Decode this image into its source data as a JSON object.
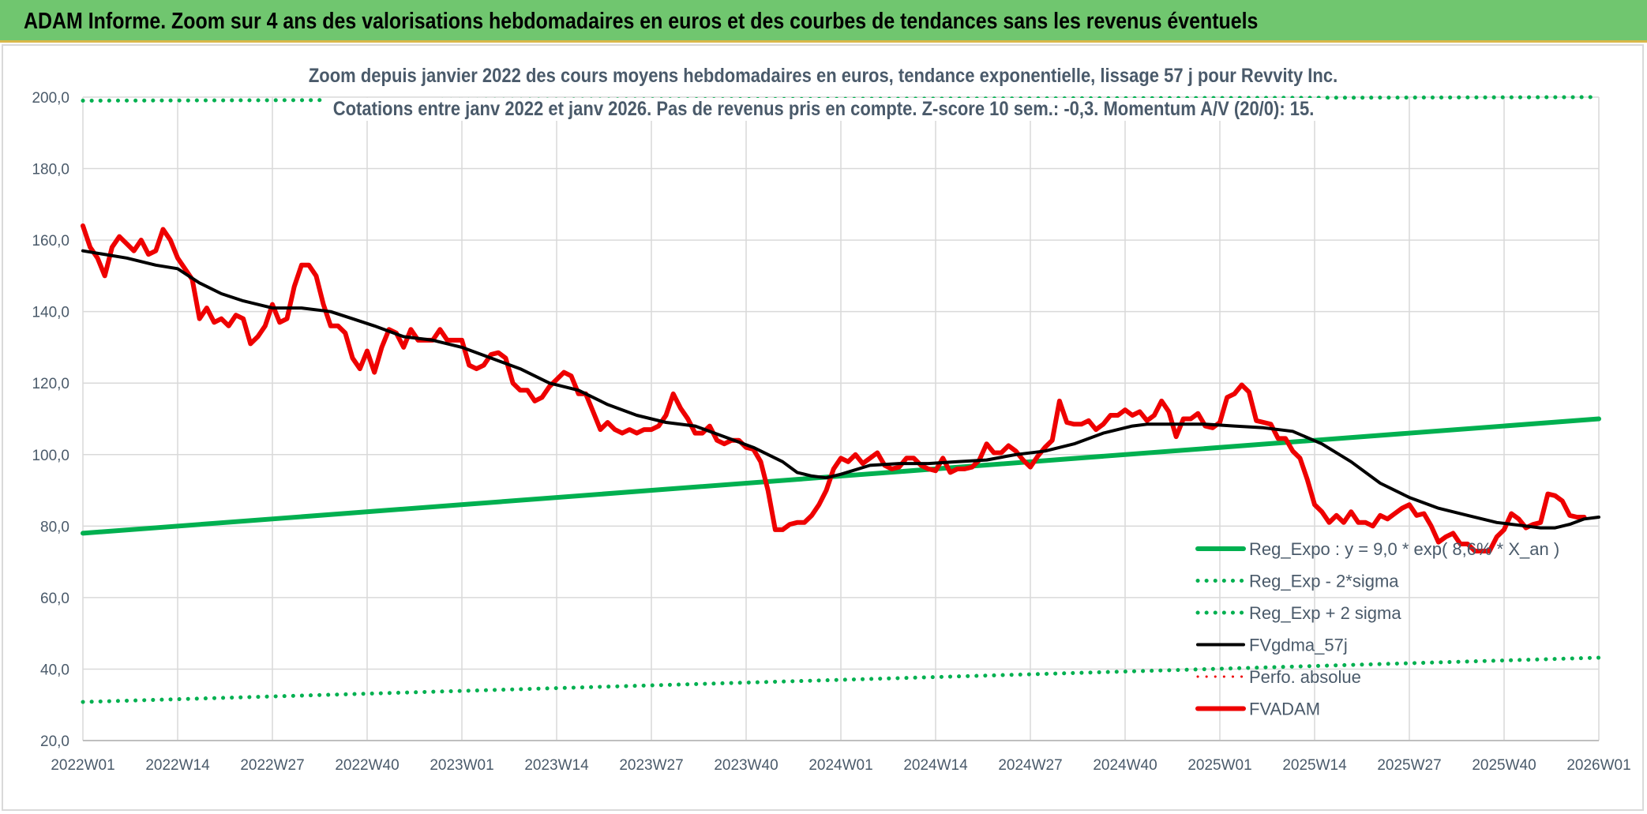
{
  "header": {
    "title": "ADAM Informe. Zoom sur 4 ans des valorisations hebdomadaires en euros et des courbes de tendances sans les revenus éventuels"
  },
  "colors": {
    "header_bg": "#70c66f",
    "green_series": "#00b050",
    "black_series": "#000000",
    "red_series": "#ee0000",
    "text": "#4a5a6a",
    "grid": "#d9d9d9"
  },
  "chart_data": {
    "type": "line",
    "title_lines": [
      "Zoom depuis janvier 2022 des cours moyens hebdomadaires en euros, tendance exponentielle, lissage 57 j pour Revvity Inc.",
      "Cotations entre janv 2022 et janv 2026. Pas de revenus pris en compte. Z-score 10 sem.: -0,3. Momentum A/V (20/0): 15."
    ],
    "x_tick_labels": [
      "2022W01",
      "2022W14",
      "2022W27",
      "2022W40",
      "2023W01",
      "2023W14",
      "2023W27",
      "2023W40",
      "2024W01",
      "2024W14",
      "2024W27",
      "2024W40",
      "2025W01",
      "2025W14",
      "2025W27",
      "2025W40",
      "2026W01"
    ],
    "y_tick_labels": [
      "20,0",
      "40,0",
      "60,0",
      "80,0",
      "100,0",
      "120,0",
      "140,0",
      "160,0",
      "180,0",
      "200,0"
    ],
    "ylim": [
      20,
      200
    ],
    "x_range_weeks": [
      0,
      208
    ],
    "grid": true,
    "legend_position": "bottom-right",
    "series": [
      {
        "name": "Reg_Expo : y = 9,0 * exp( 8,6% * X_an )",
        "style": "solid",
        "color": "#00b050",
        "width": 6,
        "points": [
          [
            0,
            78.0
          ],
          [
            208,
            110.0
          ]
        ]
      },
      {
        "name": "Reg_Exp - 2*sigma",
        "style": "dotted",
        "color": "#00b050",
        "width": 5,
        "points": [
          [
            0,
            30.8
          ],
          [
            208,
            43.2
          ]
        ]
      },
      {
        "name": "Reg_Exp + 2 sigma",
        "style": "dotted",
        "color": "#00b050",
        "width": 5,
        "points": [
          [
            0,
            199.0
          ],
          [
            208,
            200.0
          ]
        ]
      },
      {
        "name": "FVgdma_57j",
        "style": "solid",
        "color": "#000000",
        "width": 4,
        "points": [
          [
            0,
            157
          ],
          [
            6,
            155
          ],
          [
            10,
            153
          ],
          [
            13,
            152
          ],
          [
            16,
            148
          ],
          [
            19,
            145
          ],
          [
            22,
            143
          ],
          [
            26,
            141
          ],
          [
            30,
            141
          ],
          [
            34,
            140
          ],
          [
            37,
            138
          ],
          [
            40,
            136
          ],
          [
            44,
            133
          ],
          [
            48,
            132
          ],
          [
            52,
            130
          ],
          [
            56,
            127
          ],
          [
            60,
            124
          ],
          [
            64,
            120
          ],
          [
            68,
            118
          ],
          [
            72,
            114
          ],
          [
            76,
            111
          ],
          [
            80,
            109
          ],
          [
            84,
            108
          ],
          [
            88,
            105
          ],
          [
            92,
            102
          ],
          [
            96,
            98
          ],
          [
            98,
            95
          ],
          [
            100,
            94
          ],
          [
            102,
            93.5
          ],
          [
            104,
            94.5
          ],
          [
            108,
            97
          ],
          [
            112,
            97.5
          ],
          [
            116,
            97.5
          ],
          [
            120,
            98
          ],
          [
            124,
            98.5
          ],
          [
            128,
            100
          ],
          [
            132,
            101
          ],
          [
            136,
            103
          ],
          [
            140,
            106
          ],
          [
            144,
            108
          ],
          [
            146,
            108.5
          ],
          [
            150,
            108.5
          ],
          [
            154,
            108.5
          ],
          [
            158,
            108
          ],
          [
            162,
            107.5
          ],
          [
            166,
            106.5
          ],
          [
            170,
            103
          ],
          [
            174,
            98
          ],
          [
            178,
            92
          ],
          [
            182,
            88
          ],
          [
            186,
            85
          ],
          [
            190,
            83
          ],
          [
            194,
            81
          ],
          [
            198,
            80
          ],
          [
            200,
            79.5
          ],
          [
            202,
            79.5
          ],
          [
            204,
            80.5
          ],
          [
            206,
            82
          ],
          [
            208,
            82.5
          ]
        ]
      },
      {
        "name": "Perfo. absolue",
        "style": "dotted",
        "color": "#ee0000",
        "width": 3,
        "points": []
      },
      {
        "name": "FVADAM",
        "style": "solid",
        "color": "#ee0000",
        "width": 6,
        "points": [
          [
            0,
            164
          ],
          [
            1,
            158
          ],
          [
            2,
            155
          ],
          [
            3,
            150
          ],
          [
            4,
            158
          ],
          [
            5,
            161
          ],
          [
            6,
            159
          ],
          [
            7,
            157
          ],
          [
            8,
            160
          ],
          [
            9,
            156
          ],
          [
            10,
            157
          ],
          [
            11,
            163
          ],
          [
            12,
            160
          ],
          [
            13,
            155
          ],
          [
            14,
            152
          ],
          [
            15,
            149
          ],
          [
            16,
            138
          ],
          [
            17,
            141
          ],
          [
            18,
            137
          ],
          [
            19,
            138
          ],
          [
            20,
            136
          ],
          [
            21,
            139
          ],
          [
            22,
            138
          ],
          [
            23,
            131
          ],
          [
            24,
            133
          ],
          [
            25,
            136
          ],
          [
            26,
            142
          ],
          [
            27,
            137
          ],
          [
            28,
            138
          ],
          [
            29,
            147
          ],
          [
            30,
            153
          ],
          [
            31,
            153
          ],
          [
            32,
            150
          ],
          [
            33,
            142
          ],
          [
            34,
            136
          ],
          [
            35,
            136
          ],
          [
            36,
            134
          ],
          [
            37,
            127
          ],
          [
            38,
            124
          ],
          [
            39,
            129
          ],
          [
            40,
            123
          ],
          [
            41,
            130
          ],
          [
            42,
            135
          ],
          [
            43,
            134
          ],
          [
            44,
            130
          ],
          [
            45,
            135
          ],
          [
            46,
            132
          ],
          [
            47,
            132
          ],
          [
            48,
            132
          ],
          [
            49,
            135
          ],
          [
            50,
            132
          ],
          [
            51,
            132
          ],
          [
            52,
            132
          ],
          [
            53,
            125
          ],
          [
            54,
            124
          ],
          [
            55,
            125
          ],
          [
            56,
            128
          ],
          [
            57,
            128.5
          ],
          [
            58,
            127
          ],
          [
            59,
            120
          ],
          [
            60,
            118
          ],
          [
            61,
            118
          ],
          [
            62,
            115
          ],
          [
            63,
            116
          ],
          [
            64,
            119
          ],
          [
            65,
            121
          ],
          [
            66,
            123
          ],
          [
            67,
            122
          ],
          [
            68,
            117
          ],
          [
            69,
            117
          ],
          [
            70,
            112
          ],
          [
            71,
            107
          ],
          [
            72,
            109
          ],
          [
            73,
            107
          ],
          [
            74,
            106
          ],
          [
            75,
            107
          ],
          [
            76,
            106
          ],
          [
            77,
            107
          ],
          [
            78,
            107
          ],
          [
            79,
            108
          ],
          [
            80,
            111
          ],
          [
            81,
            117
          ],
          [
            82,
            113
          ],
          [
            83,
            110
          ],
          [
            84,
            106
          ],
          [
            85,
            106
          ],
          [
            86,
            108
          ],
          [
            87,
            104
          ],
          [
            88,
            103
          ],
          [
            89,
            104
          ],
          [
            90,
            104
          ],
          [
            91,
            102
          ],
          [
            92,
            101.5
          ],
          [
            93,
            98
          ],
          [
            94,
            90
          ],
          [
            95,
            79
          ],
          [
            96,
            79
          ],
          [
            97,
            80.5
          ],
          [
            98,
            81
          ],
          [
            99,
            81
          ],
          [
            100,
            83
          ],
          [
            101,
            86
          ],
          [
            102,
            90
          ],
          [
            103,
            96
          ],
          [
            104,
            99
          ],
          [
            105,
            98
          ],
          [
            106,
            100
          ],
          [
            107,
            97.5
          ],
          [
            108,
            99
          ],
          [
            109,
            100.5
          ],
          [
            110,
            97
          ],
          [
            111,
            96
          ],
          [
            112,
            96.5
          ],
          [
            113,
            99
          ],
          [
            114,
            99
          ],
          [
            115,
            97
          ],
          [
            116,
            96
          ],
          [
            117,
            95.5
          ],
          [
            118,
            99
          ],
          [
            119,
            95
          ],
          [
            120,
            96
          ],
          [
            121,
            96
          ],
          [
            122,
            96.5
          ],
          [
            123,
            98.5
          ],
          [
            124,
            103
          ],
          [
            125,
            100.5
          ],
          [
            126,
            100.5
          ],
          [
            127,
            102.5
          ],
          [
            128,
            101
          ],
          [
            129,
            98.5
          ],
          [
            130,
            96.5
          ],
          [
            131,
            99.5
          ],
          [
            132,
            102
          ],
          [
            133,
            104
          ],
          [
            134,
            115
          ],
          [
            135,
            109
          ],
          [
            136,
            108.5
          ],
          [
            137,
            108.5
          ],
          [
            138,
            109.5
          ],
          [
            139,
            107
          ],
          [
            140,
            108.5
          ],
          [
            141,
            111
          ],
          [
            142,
            111
          ],
          [
            143,
            112.5
          ],
          [
            144,
            111
          ],
          [
            145,
            112
          ],
          [
            146,
            109.5
          ],
          [
            147,
            111
          ],
          [
            148,
            115
          ],
          [
            149,
            112
          ],
          [
            150,
            105
          ],
          [
            151,
            110
          ],
          [
            152,
            110
          ],
          [
            153,
            111.5
          ],
          [
            154,
            108
          ],
          [
            155,
            107.5
          ],
          [
            156,
            109
          ],
          [
            157,
            116
          ],
          [
            158,
            117
          ],
          [
            159,
            119.5
          ],
          [
            160,
            117.5
          ],
          [
            161,
            109.5
          ],
          [
            162,
            109
          ],
          [
            163,
            108.5
          ],
          [
            164,
            104.5
          ],
          [
            165,
            104.5
          ],
          [
            166,
            101
          ],
          [
            167,
            99
          ],
          [
            168,
            93
          ],
          [
            169,
            86
          ],
          [
            170,
            84
          ],
          [
            171,
            81
          ],
          [
            172,
            83
          ],
          [
            173,
            81
          ],
          [
            174,
            84
          ],
          [
            175,
            81
          ],
          [
            176,
            81
          ],
          [
            177,
            80
          ],
          [
            178,
            83
          ],
          [
            179,
            82
          ],
          [
            180,
            83.5
          ],
          [
            181,
            85
          ],
          [
            182,
            86
          ],
          [
            183,
            83
          ],
          [
            184,
            83.5
          ],
          [
            185,
            80
          ],
          [
            186,
            75.5
          ],
          [
            187,
            77
          ],
          [
            188,
            78
          ],
          [
            189,
            75
          ],
          [
            190,
            75
          ],
          [
            191,
            73
          ],
          [
            192,
            73
          ],
          [
            193,
            73
          ],
          [
            194,
            77
          ],
          [
            195,
            79
          ],
          [
            196,
            83.5
          ],
          [
            197,
            82
          ],
          [
            198,
            79.5
          ],
          [
            199,
            80.5
          ],
          [
            200,
            81
          ],
          [
            201,
            89
          ],
          [
            202,
            88.5
          ],
          [
            203,
            87
          ],
          [
            204,
            83
          ],
          [
            205,
            82.5
          ],
          [
            206,
            82.5
          ]
        ]
      }
    ]
  }
}
